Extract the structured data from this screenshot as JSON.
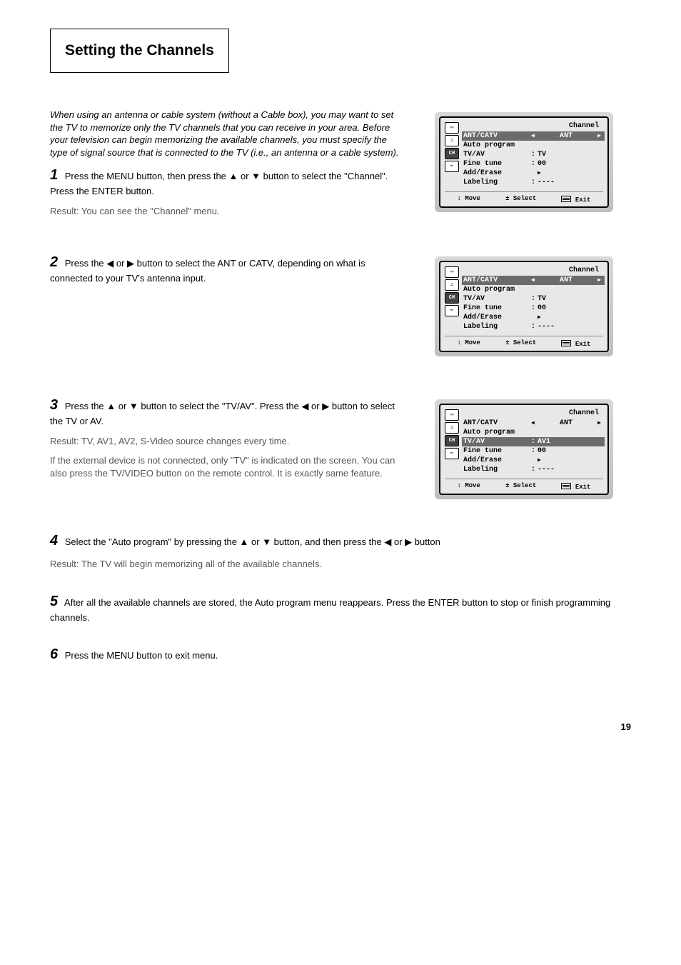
{
  "header": "Setting the Channels",
  "steps": [
    {
      "intro": "When using an antenna or cable system (without a\nCable box), you may want to set the TV to memorize\nonly the TV channels that you can receive in your\narea. Before your television can begin memorizing\nthe available channels, you must specify the type of\nsignal source that is connected to the TV (i.e., an\nantenna or a cable system).",
      "num": "1",
      "text": "Press the MENU button, then press the ▲ or ▼ button\nto select the \"Channel\". Press the ENTER button.",
      "result": "Result: You can see the \"Channel\" menu.",
      "screen": {
        "highlight": 0,
        "tvav": "TV"
      }
    },
    {
      "num": "2",
      "text": "Press the ◀ or ▶ button to select the ANT or CATV,\ndepending on what is connected to your TV's antenna\ninput.",
      "screen": {
        "highlight": 0,
        "tvav": "TV"
      }
    },
    {
      "num": "3",
      "text": "Press the ▲ or ▼ button to select the \"TV/AV\". Press\nthe ◀ or ▶ button to select the TV or AV.",
      "result": "Result: TV, AV1, AV2, S-Video source changes\nevery time.",
      "after": "If the external device is not connected, only\n\"TV\" is indicated on the screen. You can also\npress the TV/VIDEO button on the remote control.\nIt is exactly same feature.",
      "screen": {
        "highlight": 2,
        "tvav": "AV1"
      }
    }
  ],
  "post_steps": [
    {
      "num": "4",
      "text": "Select the \"Auto program\" by pressing the ▲ or ▼\nbutton, and then press the ◀ or ▶ button",
      "result": "Result: The TV will begin memorizing all of the\navailable channels."
    },
    {
      "num": "5",
      "text": "After all the available channels are stored, the Auto program\nmenu reappears. Press the ENTER button to stop or finish\nprogramming channels."
    },
    {
      "num": "6",
      "text": "Press the MENU button to exit menu."
    }
  ],
  "osd_common": {
    "title": "Channel",
    "rows": [
      {
        "label": "ANT/CATV",
        "value": "ANT",
        "arrows": true
      },
      {
        "label": "Auto program",
        "value": "",
        "arrows": false
      },
      {
        "label": "TV/AV",
        "sep": ":",
        "value": "TV"
      },
      {
        "label": "Fine tune",
        "sep": ":",
        "value": "00"
      },
      {
        "label": "Add/Erase",
        "value": "▶"
      },
      {
        "label": "Labeling",
        "sep": ":",
        "value": "----"
      }
    ],
    "footer": {
      "move": "Move",
      "select": "Select",
      "exit": "Exit"
    }
  },
  "page": "19"
}
